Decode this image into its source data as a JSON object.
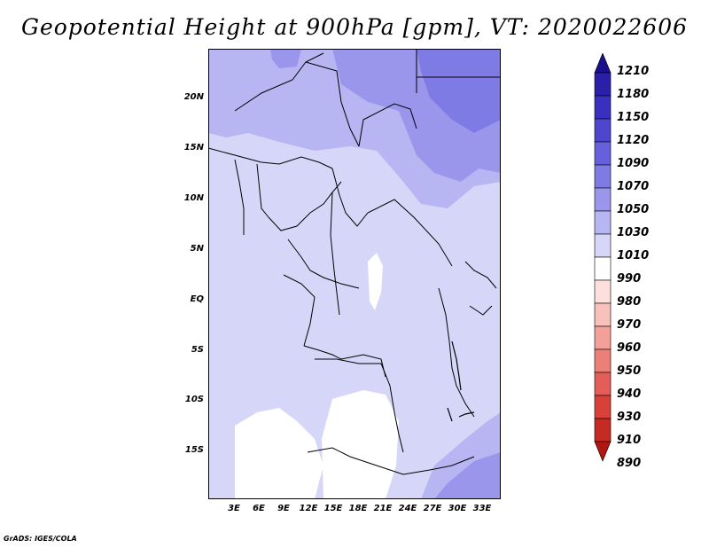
{
  "title": "Geopotential Height at 900hPa [gpm], VT: 2020022606",
  "y_axis_labels": [
    "20N",
    "15N",
    "10N",
    "5N",
    "EQ",
    "5S",
    "10S",
    "15S"
  ],
  "x_axis_labels": [
    "3E",
    "6E",
    "9E",
    "12E",
    "15E",
    "18E",
    "21E",
    "24E",
    "27E",
    "30E",
    "33E"
  ],
  "legend": {
    "labels": [
      "1210",
      "1180",
      "1150",
      "1120",
      "1090",
      "1070",
      "1050",
      "1030",
      "1010",
      "990",
      "980",
      "970",
      "960",
      "950",
      "940",
      "930",
      "910",
      "890"
    ],
    "colors": [
      "#1a0f8c",
      "#2a1fa8",
      "#3a30c0",
      "#4e46cf",
      "#6660dc",
      "#7f7be4",
      "#9a96ec",
      "#b7b5f2",
      "#d6d6f8",
      "#ffffff",
      "#fde0de",
      "#f9c1bc",
      "#f3a09a",
      "#ec7f78",
      "#e35e58",
      "#d8403a",
      "#c62a25",
      "#b01612"
    ]
  },
  "footer": "GrADS: IGES/COLA"
}
